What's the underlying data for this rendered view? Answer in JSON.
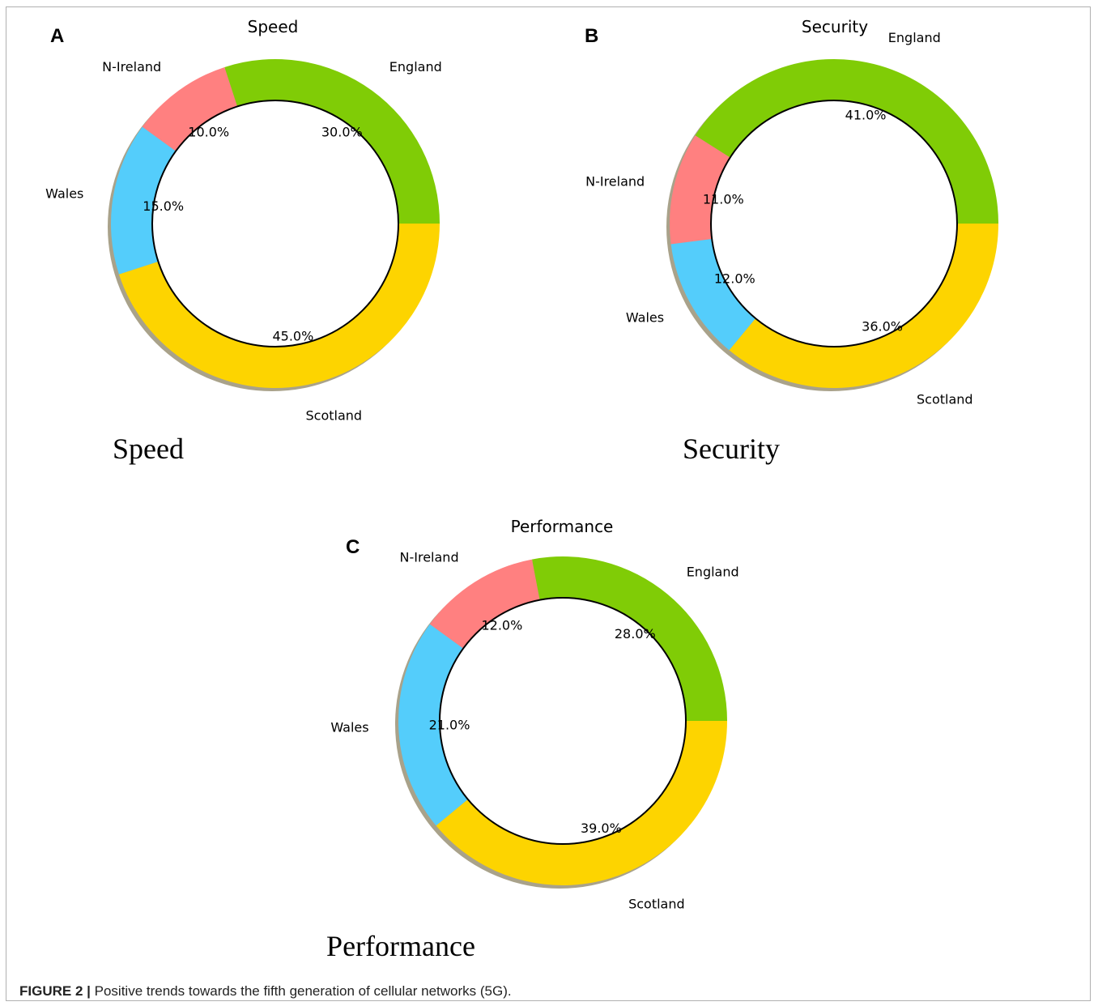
{
  "caption": {
    "label": "FIGURE 2 |",
    "text": "Positive trends towards the fifth generation of cellular networks (5G)."
  },
  "colors": {
    "England": "#80cc06",
    "N-Ireland": "#ff8080",
    "Wales": "#54cdfb",
    "Scotland": "#fdd400"
  },
  "chart_data": [
    {
      "type": "pie",
      "panel": "A",
      "title": "Speed",
      "subtitle": "Speed",
      "categories": [
        "England",
        "N-Ireland",
        "Wales",
        "Scotland"
      ],
      "values": [
        30.0,
        10.0,
        15.0,
        45.0
      ],
      "value_labels": [
        "30.0%",
        "10.0%",
        "15.0%",
        "45.0%"
      ]
    },
    {
      "type": "pie",
      "panel": "B",
      "title": "Security",
      "subtitle": "Security",
      "categories": [
        "England",
        "N-Ireland",
        "Wales",
        "Scotland"
      ],
      "values": [
        41.0,
        11.0,
        12.0,
        36.0
      ],
      "value_labels": [
        "41.0%",
        "11.0%",
        "12.0%",
        "36.0%"
      ]
    },
    {
      "type": "pie",
      "panel": "C",
      "title": "Performance",
      "subtitle": "Performance",
      "categories": [
        "England",
        "N-Ireland",
        "Wales",
        "Scotland"
      ],
      "values": [
        28.0,
        12.0,
        21.0,
        39.0
      ],
      "value_labels": [
        "28.0%",
        "12.0%",
        "21.0%",
        "39.0%"
      ]
    }
  ]
}
